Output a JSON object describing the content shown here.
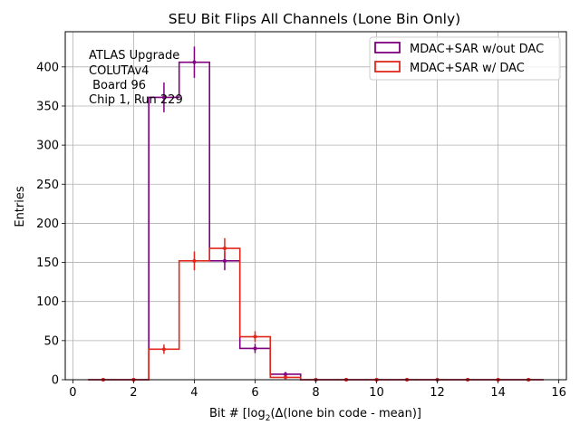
{
  "chart_data": {
    "type": "histogram",
    "title": "SEU Bit Flips All Channels (Lone Bin Only)",
    "xlabel": "Bit # [log₂(Δ(lone bin code - mean)]",
    "xlabel_prefix": "Bit # [log",
    "xlabel_sub": "2",
    "xlabel_suffix": "(Δ(lone bin code - mean)]",
    "ylabel": "Entries",
    "xlim": [
      -0.25,
      16.25
    ],
    "ylim": [
      0,
      445
    ],
    "x_ticks": [
      0,
      2,
      4,
      6,
      8,
      10,
      12,
      14,
      16
    ],
    "y_ticks": [
      0,
      50,
      100,
      150,
      200,
      250,
      300,
      350,
      400
    ],
    "grid": true,
    "legend_position": "top-right",
    "annotation_lines": [
      "ATLAS Upgrade",
      "COLUTAv4",
      " Board 96",
      "Chip 1, Run 229"
    ],
    "bin_edges": [
      0.5,
      1.5,
      2.5,
      3.5,
      4.5,
      5.5,
      6.5,
      7.5,
      8.5,
      9.5,
      10.5,
      11.5,
      12.5,
      13.5,
      14.5,
      15.5
    ],
    "x": [
      1,
      2,
      3,
      4,
      5,
      6,
      7,
      8,
      9,
      10,
      11,
      12,
      13,
      14,
      15
    ],
    "series": [
      {
        "name": "MDAC+SAR w/out DAC",
        "color": "#800080",
        "values": [
          0,
          0,
          361,
          406,
          152,
          40,
          7,
          0,
          0,
          0,
          0,
          0,
          0,
          0,
          0
        ],
        "errors": [
          0,
          0,
          19,
          20,
          12,
          6,
          3,
          0,
          0,
          0,
          0,
          0,
          0,
          0,
          0
        ]
      },
      {
        "name": "MDAC+SAR w/ DAC",
        "color": "#e0281e",
        "values": [
          0,
          0,
          39,
          152,
          168,
          55,
          3,
          0,
          0,
          0,
          0,
          0,
          0,
          0,
          0
        ],
        "errors": [
          0,
          0,
          6,
          12,
          13,
          7,
          2,
          0,
          0,
          0,
          0,
          0,
          0,
          0,
          0
        ]
      }
    ]
  }
}
